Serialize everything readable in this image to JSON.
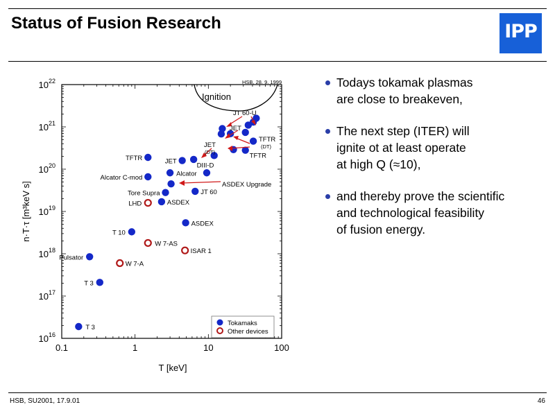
{
  "slide": {
    "title": "Status of Fusion Research",
    "logo_text": "IPP",
    "footer_left": "HSB, SU2001, 17.9.01",
    "page_number": "46",
    "colors": {
      "logo": "#1760d8",
      "tokamak": "#1428c8",
      "other": "#b01818",
      "arrow": "#d01818",
      "bullet": "#2a3ea8"
    }
  },
  "bullets": [
    [
      "Todays tokamak plasmas",
      "are close to breakeven,"
    ],
    [
      "The next step (ITER) will",
      "ignite ot at least operate",
      "at high Q (≈10),"
    ],
    [
      "and thereby prove the scientific",
      "and technological feasibility",
      "of fusion energy."
    ]
  ],
  "chart_data": {
    "type": "scatter",
    "xscale": "log",
    "yscale": "log",
    "xlabel": "T [keV]",
    "ylabel": "n·T·τ  [m³keV s]",
    "xlim": [
      0.1,
      100
    ],
    "ylim": [
      1e+16,
      1e+22
    ],
    "xticks": [
      "0.1",
      "1",
      "10",
      "100"
    ],
    "yticks": [
      "16",
      "17",
      "18",
      "19",
      "20",
      "21",
      "22"
    ],
    "stamp": "HSB, 28. 9. 1999",
    "ignition_label": "Ignition",
    "legend": {
      "placement": "bottom-right",
      "entries": [
        "Tokamaks",
        "Other devices"
      ]
    },
    "series": [
      {
        "name": "Tokamaks",
        "points": [
          {
            "label": "T 3",
            "x": 0.17,
            "y": 1.9e+16
          },
          {
            "label": "T 3",
            "x": 0.33,
            "y": 2.1e+17
          },
          {
            "label": "Pulsator",
            "x": 0.24,
            "y": 8.5e+17
          },
          {
            "label": "T 10",
            "x": 0.9,
            "y": 3.3e+18
          },
          {
            "label": "ASDEX",
            "x": 4.9,
            "y": 5.4e+18
          },
          {
            "label": "ASDEX",
            "x": 2.3,
            "y": 1.7e+19
          },
          {
            "label": "Tore Supra",
            "x": 2.6,
            "y": 2.8e+19
          },
          {
            "label": "JT 60",
            "x": 6.6,
            "y": 3e+19
          },
          {
            "label": "",
            "x": 3.1,
            "y": 4.5e+19
          },
          {
            "label": "Alcator C-mod",
            "x": 1.5,
            "y": 6.6e+19
          },
          {
            "label": "Alcator",
            "x": 3.0,
            "y": 8.2e+19
          },
          {
            "label": "DIII-D",
            "x": 9.5,
            "y": 8.2e+19
          },
          {
            "label": "TFTR",
            "x": 1.5,
            "y": 1.9e+20
          },
          {
            "label": "JET",
            "x": 4.4,
            "y": 1.6e+20
          },
          {
            "label": "",
            "x": 6.3,
            "y": 1.7e+20
          },
          {
            "label": "",
            "x": 12.0,
            "y": 2.1e+20
          },
          {
            "label": "",
            "x": 22.0,
            "y": 2.9e+20
          },
          {
            "label": "TFTR",
            "x": 32.0,
            "y": 2.8e+20
          },
          {
            "label": "",
            "x": 15.0,
            "y": 6.8e+20
          },
          {
            "label": "",
            "x": 20.0,
            "y": 6.9e+20
          },
          {
            "label": "",
            "x": 15.5,
            "y": 9.1e+20
          },
          {
            "label": "",
            "x": 32.0,
            "y": 7.4e+20
          },
          {
            "label": "",
            "x": 41.0,
            "y": 4.6e+20
          },
          {
            "label": "",
            "x": 35.0,
            "y": 1.1e+21
          },
          {
            "label": "",
            "x": 41.0,
            "y": 1.3e+21
          },
          {
            "label": "",
            "x": 45.0,
            "y": 1.6e+21
          }
        ]
      },
      {
        "name": "Other devices",
        "points": [
          {
            "label": "W 7-A",
            "x": 0.62,
            "y": 6e+17
          },
          {
            "label": "ISAR 1",
            "x": 4.8,
            "y": 1.2e+18
          },
          {
            "label": "W 7-AS",
            "x": 1.5,
            "y": 1.8e+18
          },
          {
            "label": "LHD",
            "x": 1.5,
            "y": 1.6e+19
          }
        ]
      }
    ],
    "annotations": [
      "JT 60-U",
      "JET",
      "JET",
      "(DT)",
      "TFTR",
      "(DT)",
      "ASDEX Upgrade"
    ]
  }
}
